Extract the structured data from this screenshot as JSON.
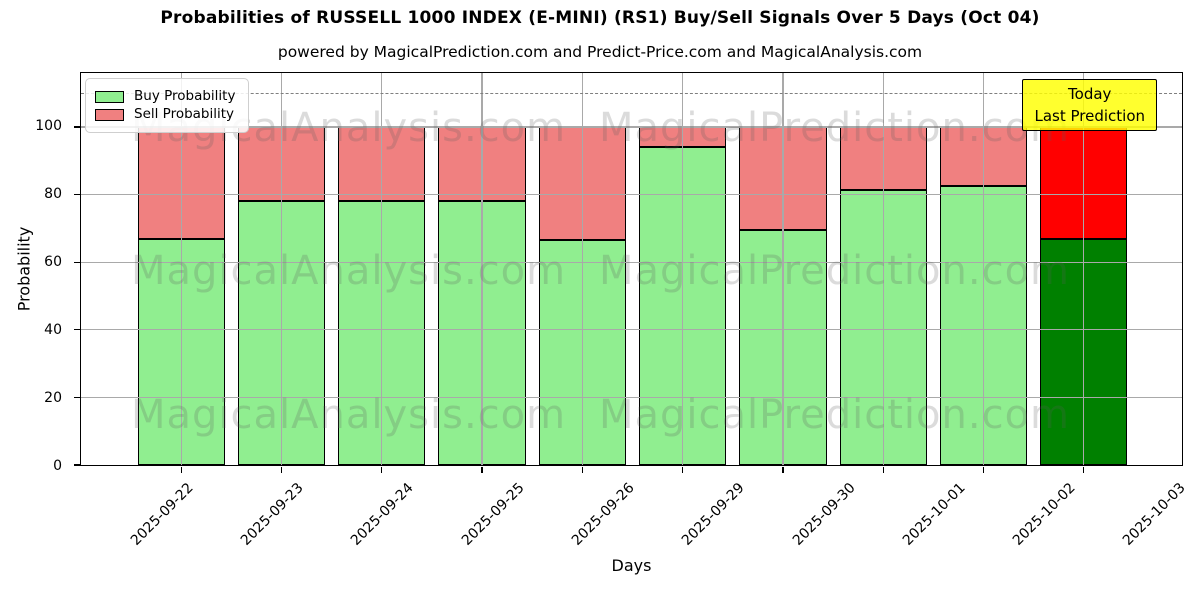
{
  "title": "Probabilities of RUSSELL 1000 INDEX (E-MINI) (RS1) Buy/Sell Signals Over 5 Days (Oct 04)",
  "subtitle": "powered by MagicalPrediction.com and Predict-Price.com and MagicalAnalysis.com",
  "chart_data": {
    "type": "bar",
    "stacked": true,
    "title": "Probabilities of RUSSELL 1000 INDEX (E-MINI) (RS1) Buy/Sell Signals Over 5 Days (Oct 04)",
    "categories": [
      "2025-09-22",
      "2025-09-23",
      "2025-09-24",
      "2025-09-25",
      "2025-09-26",
      "2025-09-29",
      "2025-09-30",
      "2025-10-01",
      "2025-10-02",
      "2025-10-03"
    ],
    "series": [
      {
        "name": "Buy Probability",
        "values": [
          67,
          78,
          78,
          78,
          66.5,
          94,
          69.5,
          81.5,
          82.5,
          67
        ]
      },
      {
        "name": "Sell Probability",
        "values": [
          33,
          22,
          22,
          22,
          33.5,
          6,
          30.5,
          18.5,
          17.5,
          33
        ]
      }
    ],
    "xlabel": "Days",
    "ylabel": "Probability",
    "yticks": [
      0,
      20,
      40,
      60,
      80,
      100
    ],
    "ylim": [
      0,
      116
    ],
    "dashed_line_y": 110,
    "grid": true,
    "legend_position": "upper-left",
    "today_index": 9,
    "colors": {
      "buy": "#90ee90",
      "sell": "#f08080",
      "buy_today": "#008000",
      "sell_today": "#ff0000",
      "bar_edge": "#000000",
      "grid": "#a9a9a9",
      "dashed_line": "#7f7f7f",
      "annotation_bg": "#ffff00"
    }
  },
  "legend": {
    "items": [
      {
        "label": "Buy Probability",
        "color": "#90ee90"
      },
      {
        "label": "Sell Probability",
        "color": "#f08080"
      }
    ]
  },
  "annotation": {
    "line1": "Today",
    "line2": "Last Prediction"
  },
  "watermarks": {
    "left_text": "MagicalAnalysis.com",
    "right_text": "MagicalPrediction.com",
    "rows": 3
  }
}
